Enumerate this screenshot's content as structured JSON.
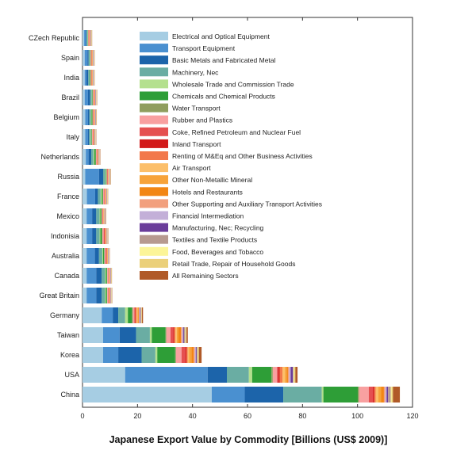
{
  "chart_data": {
    "type": "bar",
    "orientation": "horizontal",
    "stacked": true,
    "xlabel": "Japanese Export Value by Commodity [Billions (US$ 2009)]",
    "ylabel": "",
    "xlim": [
      0,
      120
    ],
    "xticks": [
      0,
      20,
      40,
      60,
      80,
      100,
      120
    ],
    "grid": false,
    "legend_position": "top-center",
    "categories": [
      "CZech Republic",
      "Spain",
      "India",
      "Brazil",
      "Belgium",
      "Italy",
      "Netherlands",
      "Russia",
      "France",
      "Mexico",
      "Indonisia",
      "Australia",
      "Canada",
      "Great Britain",
      "Germany",
      "Taiwan",
      "Korea",
      "USA",
      "China"
    ],
    "series": [
      {
        "name": "Electrical and Optical Equipment",
        "color": "#a6cde3",
        "values": [
          0.6,
          0.8,
          0.8,
          0.8,
          1.0,
          1.0,
          1.2,
          1.0,
          1.6,
          1.5,
          1.5,
          1.5,
          1.5,
          1.5,
          7.0,
          7.5,
          7.5,
          15.5,
          47.0
        ]
      },
      {
        "name": "Transport Equipment",
        "color": "#4a90d0",
        "values": [
          0.6,
          1.0,
          0.6,
          1.2,
          1.0,
          1.0,
          1.0,
          5.0,
          3.0,
          2.0,
          2.0,
          3.0,
          3.5,
          3.5,
          4.0,
          6.0,
          5.5,
          30.0,
          12.0
        ]
      },
      {
        "name": "Basic Metals and Fabricated Metal",
        "color": "#1c64aa",
        "values": [
          0.3,
          0.4,
          0.7,
          0.8,
          0.5,
          0.4,
          1.0,
          1.5,
          1.0,
          1.5,
          1.5,
          1.5,
          2.0,
          2.0,
          2.0,
          6.0,
          8.5,
          7.0,
          14.0
        ]
      },
      {
        "name": "Machinery, Nec",
        "color": "#6aada3",
        "values": [
          0.3,
          0.5,
          0.5,
          0.6,
          0.6,
          0.6,
          0.8,
          0.8,
          1.0,
          1.2,
          1.2,
          1.2,
          1.2,
          1.2,
          2.5,
          5.0,
          5.0,
          8.0,
          14.0
        ]
      },
      {
        "name": "Wholesale Trade and Commission Trade",
        "color": "#b4e08e",
        "values": [
          0.1,
          0.1,
          0.1,
          0.1,
          0.2,
          0.2,
          0.3,
          0.2,
          0.4,
          0.3,
          0.3,
          0.3,
          0.3,
          0.3,
          1.0,
          0.7,
          0.7,
          1.2,
          0.6
        ]
      },
      {
        "name": "Chemicals and Chemical Products",
        "color": "#2e9e37",
        "values": [
          0.1,
          0.1,
          0.2,
          0.2,
          0.3,
          0.2,
          0.5,
          0.2,
          0.4,
          0.4,
          0.6,
          0.4,
          0.4,
          0.4,
          1.5,
          5.0,
          6.5,
          7.0,
          12.5
        ]
      },
      {
        "name": "Water Transport",
        "color": "#8f9e5e",
        "values": [
          0.1,
          0.1,
          0.1,
          0.1,
          0.1,
          0.1,
          0.1,
          0.1,
          0.1,
          0.1,
          0.1,
          0.1,
          0.1,
          0.1,
          0.3,
          0.3,
          0.3,
          0.5,
          0.5
        ]
      },
      {
        "name": "Rubber and Plastics",
        "color": "#f8a0a0",
        "values": [
          0.1,
          0.1,
          0.1,
          0.2,
          0.2,
          0.2,
          0.3,
          0.2,
          0.4,
          0.3,
          0.5,
          0.4,
          0.4,
          0.4,
          0.5,
          1.5,
          2.0,
          1.5,
          3.5
        ]
      },
      {
        "name": "Coke, Refined Petroleum and Nuclear Fuel",
        "color": "#e55050",
        "values": [
          0.1,
          0.1,
          0.1,
          0.1,
          0.1,
          0.1,
          0.1,
          0.1,
          0.1,
          0.1,
          0.4,
          0.3,
          0.1,
          0.1,
          0.2,
          1.0,
          1.5,
          0.5,
          1.5
        ]
      },
      {
        "name": "Inland Transport",
        "color": "#d21a1a",
        "values": [
          0.1,
          0.1,
          0.1,
          0.1,
          0.1,
          0.1,
          0.1,
          0.1,
          0.1,
          0.1,
          0.1,
          0.1,
          0.1,
          0.1,
          0.2,
          0.3,
          0.3,
          0.5,
          0.5
        ]
      },
      {
        "name": "Renting of M&Eq and Other Business Activities",
        "color": "#f2784b",
        "values": [
          0.1,
          0.1,
          0.1,
          0.1,
          0.1,
          0.1,
          0.1,
          0.1,
          0.2,
          0.1,
          0.1,
          0.1,
          0.1,
          0.2,
          0.5,
          0.5,
          0.5,
          1.0,
          0.5
        ]
      },
      {
        "name": "Air Transport",
        "color": "#fcbf6a",
        "values": [
          0.1,
          0.1,
          0.1,
          0.1,
          0.1,
          0.1,
          0.1,
          0.1,
          0.1,
          0.1,
          0.1,
          0.1,
          0.1,
          0.1,
          0.3,
          0.5,
          0.5,
          1.0,
          1.0
        ]
      },
      {
        "name": "Other Non-Metallic Mineral",
        "color": "#f7a33a",
        "values": [
          0.1,
          0.1,
          0.1,
          0.1,
          0.1,
          0.1,
          0.1,
          0.1,
          0.1,
          0.1,
          0.2,
          0.1,
          0.1,
          0.1,
          0.3,
          0.5,
          0.8,
          0.5,
          1.0
        ]
      },
      {
        "name": "Hotels and Restaurants",
        "color": "#f28614",
        "values": [
          0.1,
          0.1,
          0.1,
          0.1,
          0.1,
          0.1,
          0.1,
          0.1,
          0.1,
          0.1,
          0.1,
          0.1,
          0.1,
          0.1,
          0.2,
          1.0,
          0.8,
          0.5,
          1.0
        ]
      },
      {
        "name": "Other Supporting and Auxiliary Transport Activities",
        "color": "#f2a07e",
        "values": [
          0.1,
          0.1,
          0.1,
          0.1,
          0.1,
          0.1,
          0.1,
          0.1,
          0.1,
          0.1,
          0.1,
          0.1,
          0.1,
          0.1,
          0.2,
          0.5,
          0.5,
          0.5,
          0.5
        ]
      },
      {
        "name": "Financial Intermediation",
        "color": "#c3afd8",
        "values": [
          0.1,
          0.1,
          0.1,
          0.1,
          0.1,
          0.1,
          0.1,
          0.1,
          0.1,
          0.1,
          0.1,
          0.1,
          0.1,
          0.1,
          0.2,
          0.3,
          0.3,
          0.5,
          0.5
        ]
      },
      {
        "name": "Manufacturing, Nec; Recycling",
        "color": "#6a3d9a",
        "values": [
          0.1,
          0.1,
          0.1,
          0.1,
          0.1,
          0.1,
          0.1,
          0.1,
          0.1,
          0.1,
          0.1,
          0.1,
          0.1,
          0.1,
          0.2,
          0.3,
          0.3,
          0.8,
          0.5
        ]
      },
      {
        "name": "Textiles and Textile Products",
        "color": "#b79a90",
        "values": [
          0.1,
          0.1,
          0.1,
          0.1,
          0.1,
          0.1,
          0.1,
          0.1,
          0.1,
          0.1,
          0.1,
          0.1,
          0.1,
          0.1,
          0.2,
          0.5,
          0.3,
          0.2,
          1.0
        ]
      },
      {
        "name": "Food, Beverages and Tobacco",
        "color": "#fcf598",
        "values": [
          0.1,
          0.1,
          0.1,
          0.1,
          0.1,
          0.1,
          0.1,
          0.1,
          0.1,
          0.1,
          0.1,
          0.1,
          0.1,
          0.1,
          0.1,
          0.2,
          0.2,
          0.2,
          0.3
        ]
      },
      {
        "name": "Retail Trade, Repair of Household Goods",
        "color": "#ebd07a",
        "values": [
          0.1,
          0.1,
          0.1,
          0.1,
          0.1,
          0.1,
          0.1,
          0.1,
          0.1,
          0.1,
          0.1,
          0.1,
          0.1,
          0.1,
          0.2,
          0.2,
          0.3,
          0.5,
          0.5
        ]
      },
      {
        "name": "All Remaining Sectors",
        "color": "#b05a28",
        "values": [
          0.1,
          0.1,
          0.1,
          0.1,
          0.1,
          0.1,
          0.1,
          0.1,
          0.1,
          0.1,
          0.1,
          0.1,
          0.1,
          0.1,
          0.4,
          0.5,
          1.0,
          0.8,
          2.5
        ]
      }
    ]
  }
}
